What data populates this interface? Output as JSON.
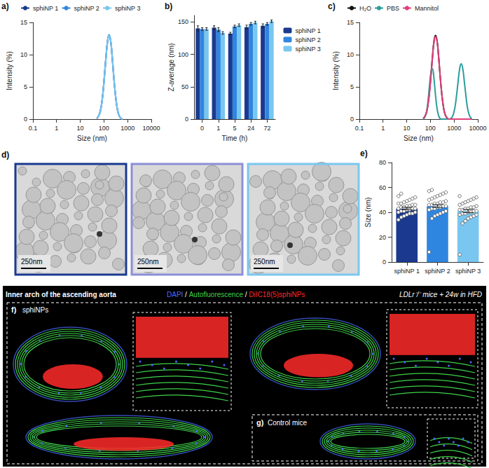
{
  "chart_data": [
    {
      "panel": "a)",
      "type": "line",
      "x_label": "Size (nm)",
      "y_label": "Intensity (%)",
      "log": "x",
      "xlim": [
        0.1,
        10000
      ],
      "xticks": [
        0.1,
        1,
        10,
        100,
        1000,
        10000
      ],
      "ylim": [
        0,
        15
      ],
      "yticks": [
        0,
        5,
        10,
        15
      ],
      "legend": "top",
      "grid": false,
      "x": [
        50,
        60,
        70,
        80,
        92,
        106,
        122,
        142,
        164,
        190,
        220,
        255,
        295,
        342,
        396,
        459,
        531,
        615
      ],
      "series": [
        {
          "name": "sphiNP 1",
          "color": "#1b3a8f",
          "values": [
            0.1,
            0.5,
            1.2,
            2.4,
            4.3,
            6.9,
            9.6,
            12.1,
            13.0,
            12.2,
            9.9,
            6.9,
            4.3,
            2.3,
            1.0,
            0.4,
            0.1,
            0
          ]
        },
        {
          "name": "sphiNP 2",
          "color": "#2f86e0",
          "values": [
            0.1,
            0.5,
            1.2,
            2.3,
            4.2,
            6.8,
            9.5,
            12.0,
            13.1,
            12.3,
            10.0,
            7.0,
            4.4,
            2.3,
            1.0,
            0.4,
            0.1,
            0
          ]
        },
        {
          "name": "sphiNP 3",
          "color": "#79c7f0",
          "values": [
            0.1,
            0.5,
            1.1,
            2.3,
            4.2,
            6.8,
            9.5,
            12.0,
            13.0,
            12.3,
            10.0,
            7.0,
            4.4,
            2.4,
            1.0,
            0.4,
            0.1,
            0
          ]
        }
      ]
    },
    {
      "panel": "b)",
      "type": "bar",
      "x_label": "Time (h)",
      "y_label": "Z-average (nm)",
      "categories": [
        "0",
        "1",
        "5",
        "24",
        "72"
      ],
      "ylim": [
        0,
        160
      ],
      "yticks": [
        0,
        50,
        100,
        150
      ],
      "legend": "right",
      "grid": false,
      "series": [
        {
          "name": "sphiNP 1",
          "color": "#1b3a8f",
          "values": [
            140,
            141,
            132,
            142,
            144
          ],
          "errors": [
            4,
            3,
            2,
            3,
            3
          ]
        },
        {
          "name": "sphiNP 2",
          "color": "#2f86e0",
          "values": [
            139,
            138,
            143,
            147,
            147
          ],
          "errors": [
            2,
            3,
            2,
            2,
            2
          ]
        },
        {
          "name": "sphiNP 3",
          "color": "#79c7f0",
          "values": [
            139,
            133,
            145,
            149,
            151
          ],
          "errors": [
            2,
            2,
            2,
            2,
            2
          ]
        }
      ]
    },
    {
      "panel": "c)",
      "type": "line",
      "x_label": "Size (nm)",
      "y_label": "Intensity (%)",
      "log": "x",
      "xlim": [
        0.1,
        10000
      ],
      "xticks": [
        0.1,
        1,
        10,
        100,
        1000,
        10000
      ],
      "ylim": [
        0,
        15
      ],
      "yticks": [
        0,
        5,
        10,
        15
      ],
      "legend": "top",
      "grid": false,
      "x": [
        50,
        60,
        70,
        80,
        92,
        106,
        122,
        142,
        164,
        190,
        220,
        255,
        295,
        342,
        396,
        459,
        531,
        615,
        712,
        825,
        955,
        1106,
        1281,
        1484,
        1718,
        1990,
        2305,
        2669,
        3091,
        3580,
        4146,
        4801,
        5560
      ],
      "series": [
        {
          "name": "H₂O",
          "color": "#111111",
          "values": [
            0.1,
            0.5,
            1.2,
            2.4,
            4.3,
            6.9,
            9.6,
            12.1,
            13.0,
            12.2,
            9.9,
            6.9,
            4.3,
            2.3,
            1.0,
            0.4,
            0.1,
            0,
            0,
            0,
            0,
            0,
            0,
            0,
            0,
            0,
            0,
            0,
            0,
            0,
            0,
            0,
            0
          ]
        },
        {
          "name": "PBS",
          "color": "#2a9d9d",
          "values": [
            0,
            0.4,
            1.3,
            3.0,
            5.3,
            7.3,
            7.8,
            6.2,
            3.7,
            1.7,
            0.6,
            0.1,
            0,
            0,
            0,
            0,
            0,
            0,
            0.1,
            0.3,
            0.9,
            2.0,
            3.8,
            5.9,
            7.8,
            8.6,
            7.9,
            6.0,
            3.9,
            2.0,
            0.9,
            0.3,
            0.1
          ]
        },
        {
          "name": "Mannitol",
          "color": "#e0407a",
          "values": [
            0.1,
            0.5,
            1.2,
            2.4,
            4.2,
            6.8,
            9.5,
            12.0,
            12.8,
            12.1,
            9.8,
            6.9,
            4.3,
            2.3,
            1.0,
            0.4,
            0.1,
            0,
            0,
            0,
            0,
            0,
            0,
            0,
            0,
            0,
            0,
            0,
            0,
            0,
            0,
            0,
            0
          ]
        }
      ]
    },
    {
      "panel": "e)",
      "type": "bar",
      "y_label": "Size (nm)",
      "categories": [
        "sphiNP 1",
        "sphiNP 2",
        "sphiNP 3"
      ],
      "values": [
        43,
        45,
        41
      ],
      "errors": [
        1,
        1.2,
        1.3
      ],
      "colors": [
        "#1b3a8f",
        "#2f86e0",
        "#79c7f0"
      ],
      "points": [
        [
          34,
          36,
          37,
          38,
          39,
          39,
          40,
          40,
          41,
          41,
          42,
          42,
          43,
          43,
          43,
          44,
          44,
          45,
          45,
          46,
          46,
          47,
          47,
          48,
          49,
          50,
          51,
          52,
          53,
          55
        ],
        [
          8,
          35,
          37,
          38,
          39,
          40,
          41,
          42,
          43,
          43,
          44,
          44,
          45,
          45,
          46,
          46,
          47,
          47,
          48,
          48,
          49,
          50,
          51,
          52,
          53,
          54,
          55,
          56,
          57,
          58
        ],
        [
          6,
          31,
          33,
          35,
          36,
          37,
          38,
          38,
          39,
          39,
          40,
          40,
          41,
          41,
          42,
          42,
          43,
          43,
          44,
          44,
          45,
          46,
          47,
          48,
          49,
          50,
          51,
          52,
          53
        ]
      ],
      "ylim": [
        0,
        80
      ],
      "yticks": [
        0,
        20,
        40,
        60,
        80
      ],
      "grid": false
    }
  ],
  "images": {
    "d": {
      "panel": "d)",
      "scale_bars": [
        "250nm",
        "250nm",
        "250nm"
      ],
      "colors": [
        "#1b3a8f",
        "#8c8fd8",
        "#79c7f0"
      ]
    },
    "f": {
      "title": "Inner arch of the ascending aorta",
      "channels": [
        {
          "text": "DAPI",
          "color": "#4a6bff"
        },
        {
          "text": "Autofluorescence",
          "color": "#3fd24a"
        },
        {
          "text": "DiIC18(5)sphiNPs",
          "color": "#ff2a2a"
        }
      ],
      "separator": " / ",
      "model": "LDLr⁻/⁻ mice + 24w in HFD",
      "panels": [
        {
          "panel": "f)",
          "label": "sphiNPs"
        },
        {
          "panel": "g)",
          "label": "Control mice"
        }
      ]
    }
  }
}
